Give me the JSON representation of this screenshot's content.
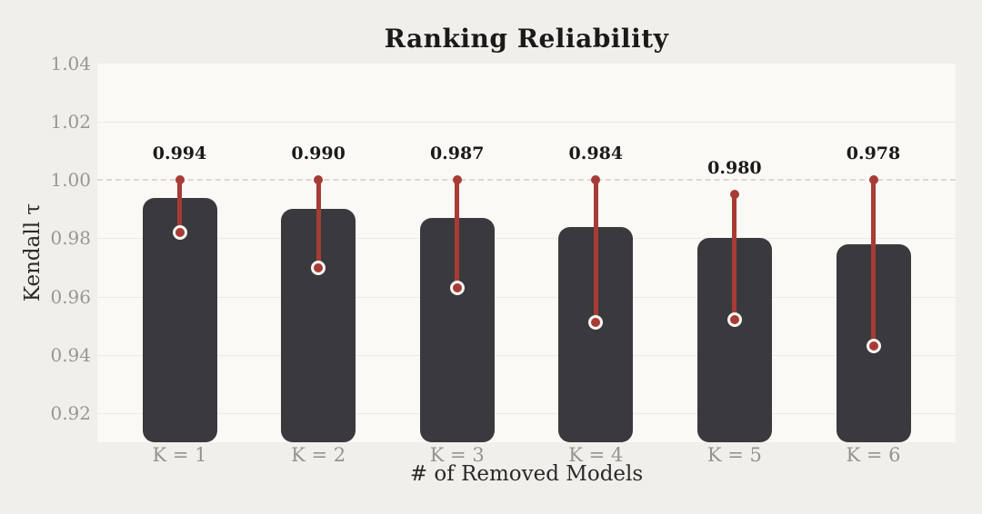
{
  "colors": {
    "background": "#f1efeb",
    "plot_background": "#faf9f6",
    "bar": "#3a393d",
    "error_bar": "#a63c35",
    "marker_ring": "#f8f7f4",
    "gridline": "#edeae6",
    "ref_line": "#dcd9d4",
    "tick_text": "#999693",
    "axis_title_text": "#2b2a28",
    "title_text": "#1b1a18"
  },
  "chart_data": {
    "type": "bar",
    "title": "Ranking Reliability",
    "xlabel": "# of Removed Models",
    "ylabel": "Kendall τ",
    "categories": [
      "K = 1",
      "K = 2",
      "K = 3",
      "K = 4",
      "K = 5",
      "K = 6"
    ],
    "values": [
      0.994,
      0.99,
      0.987,
      0.984,
      0.98,
      0.978
    ],
    "value_labels": [
      "0.994",
      "0.990",
      "0.987",
      "0.984",
      "0.980",
      "0.978"
    ],
    "error_high": [
      1.0,
      1.0,
      1.0,
      1.0,
      0.995,
      1.0
    ],
    "error_low": [
      0.982,
      0.97,
      0.963,
      0.951,
      0.952,
      0.943
    ],
    "ylim": [
      0.91,
      1.04
    ],
    "y_ticks": [
      0.92,
      0.94,
      0.96,
      0.98,
      1.0,
      1.02,
      1.04
    ],
    "y_tick_labels": [
      "0.92",
      "0.94",
      "0.96",
      "0.98",
      "1.00",
      "1.02",
      "1.04"
    ],
    "ref_line": 1.0,
    "grid": "horizontal",
    "legend": "none"
  }
}
